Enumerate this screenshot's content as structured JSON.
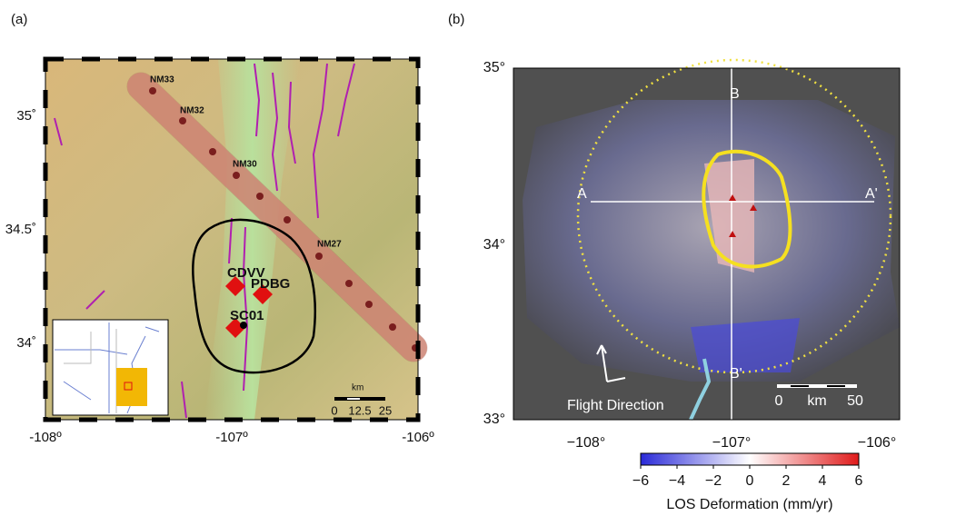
{
  "panels": [
    {
      "label": "(a)",
      "yticks": [
        "35˚",
        "34.5˚",
        "34˚"
      ],
      "xticks": [
        "-108º",
        "-107º",
        "-106º"
      ],
      "profile_sites": [
        "NM33",
        "NM32",
        "NM30",
        "NM27"
      ],
      "stations": [
        "CDVV",
        "PDBG",
        "SC01"
      ],
      "scale": {
        "unit": "km",
        "ticks": [
          "0",
          "12.5",
          "25"
        ]
      }
    },
    {
      "label": "(b)",
      "yticks": [
        "35°",
        "34°",
        "33°"
      ],
      "xticks": [
        "−108°",
        "−107°",
        "−106°"
      ],
      "profiles": [
        "A",
        "A'",
        "B",
        "B'"
      ],
      "flight": "Flight Direction",
      "scale": {
        "ticks": [
          "0",
          "km",
          "50"
        ]
      },
      "colorbar": {
        "ticks": [
          "−6",
          "−4",
          "−2",
          "0",
          "2",
          "4",
          "6"
        ],
        "label": "LOS Deformation (mm/yr)"
      }
    }
  ]
}
